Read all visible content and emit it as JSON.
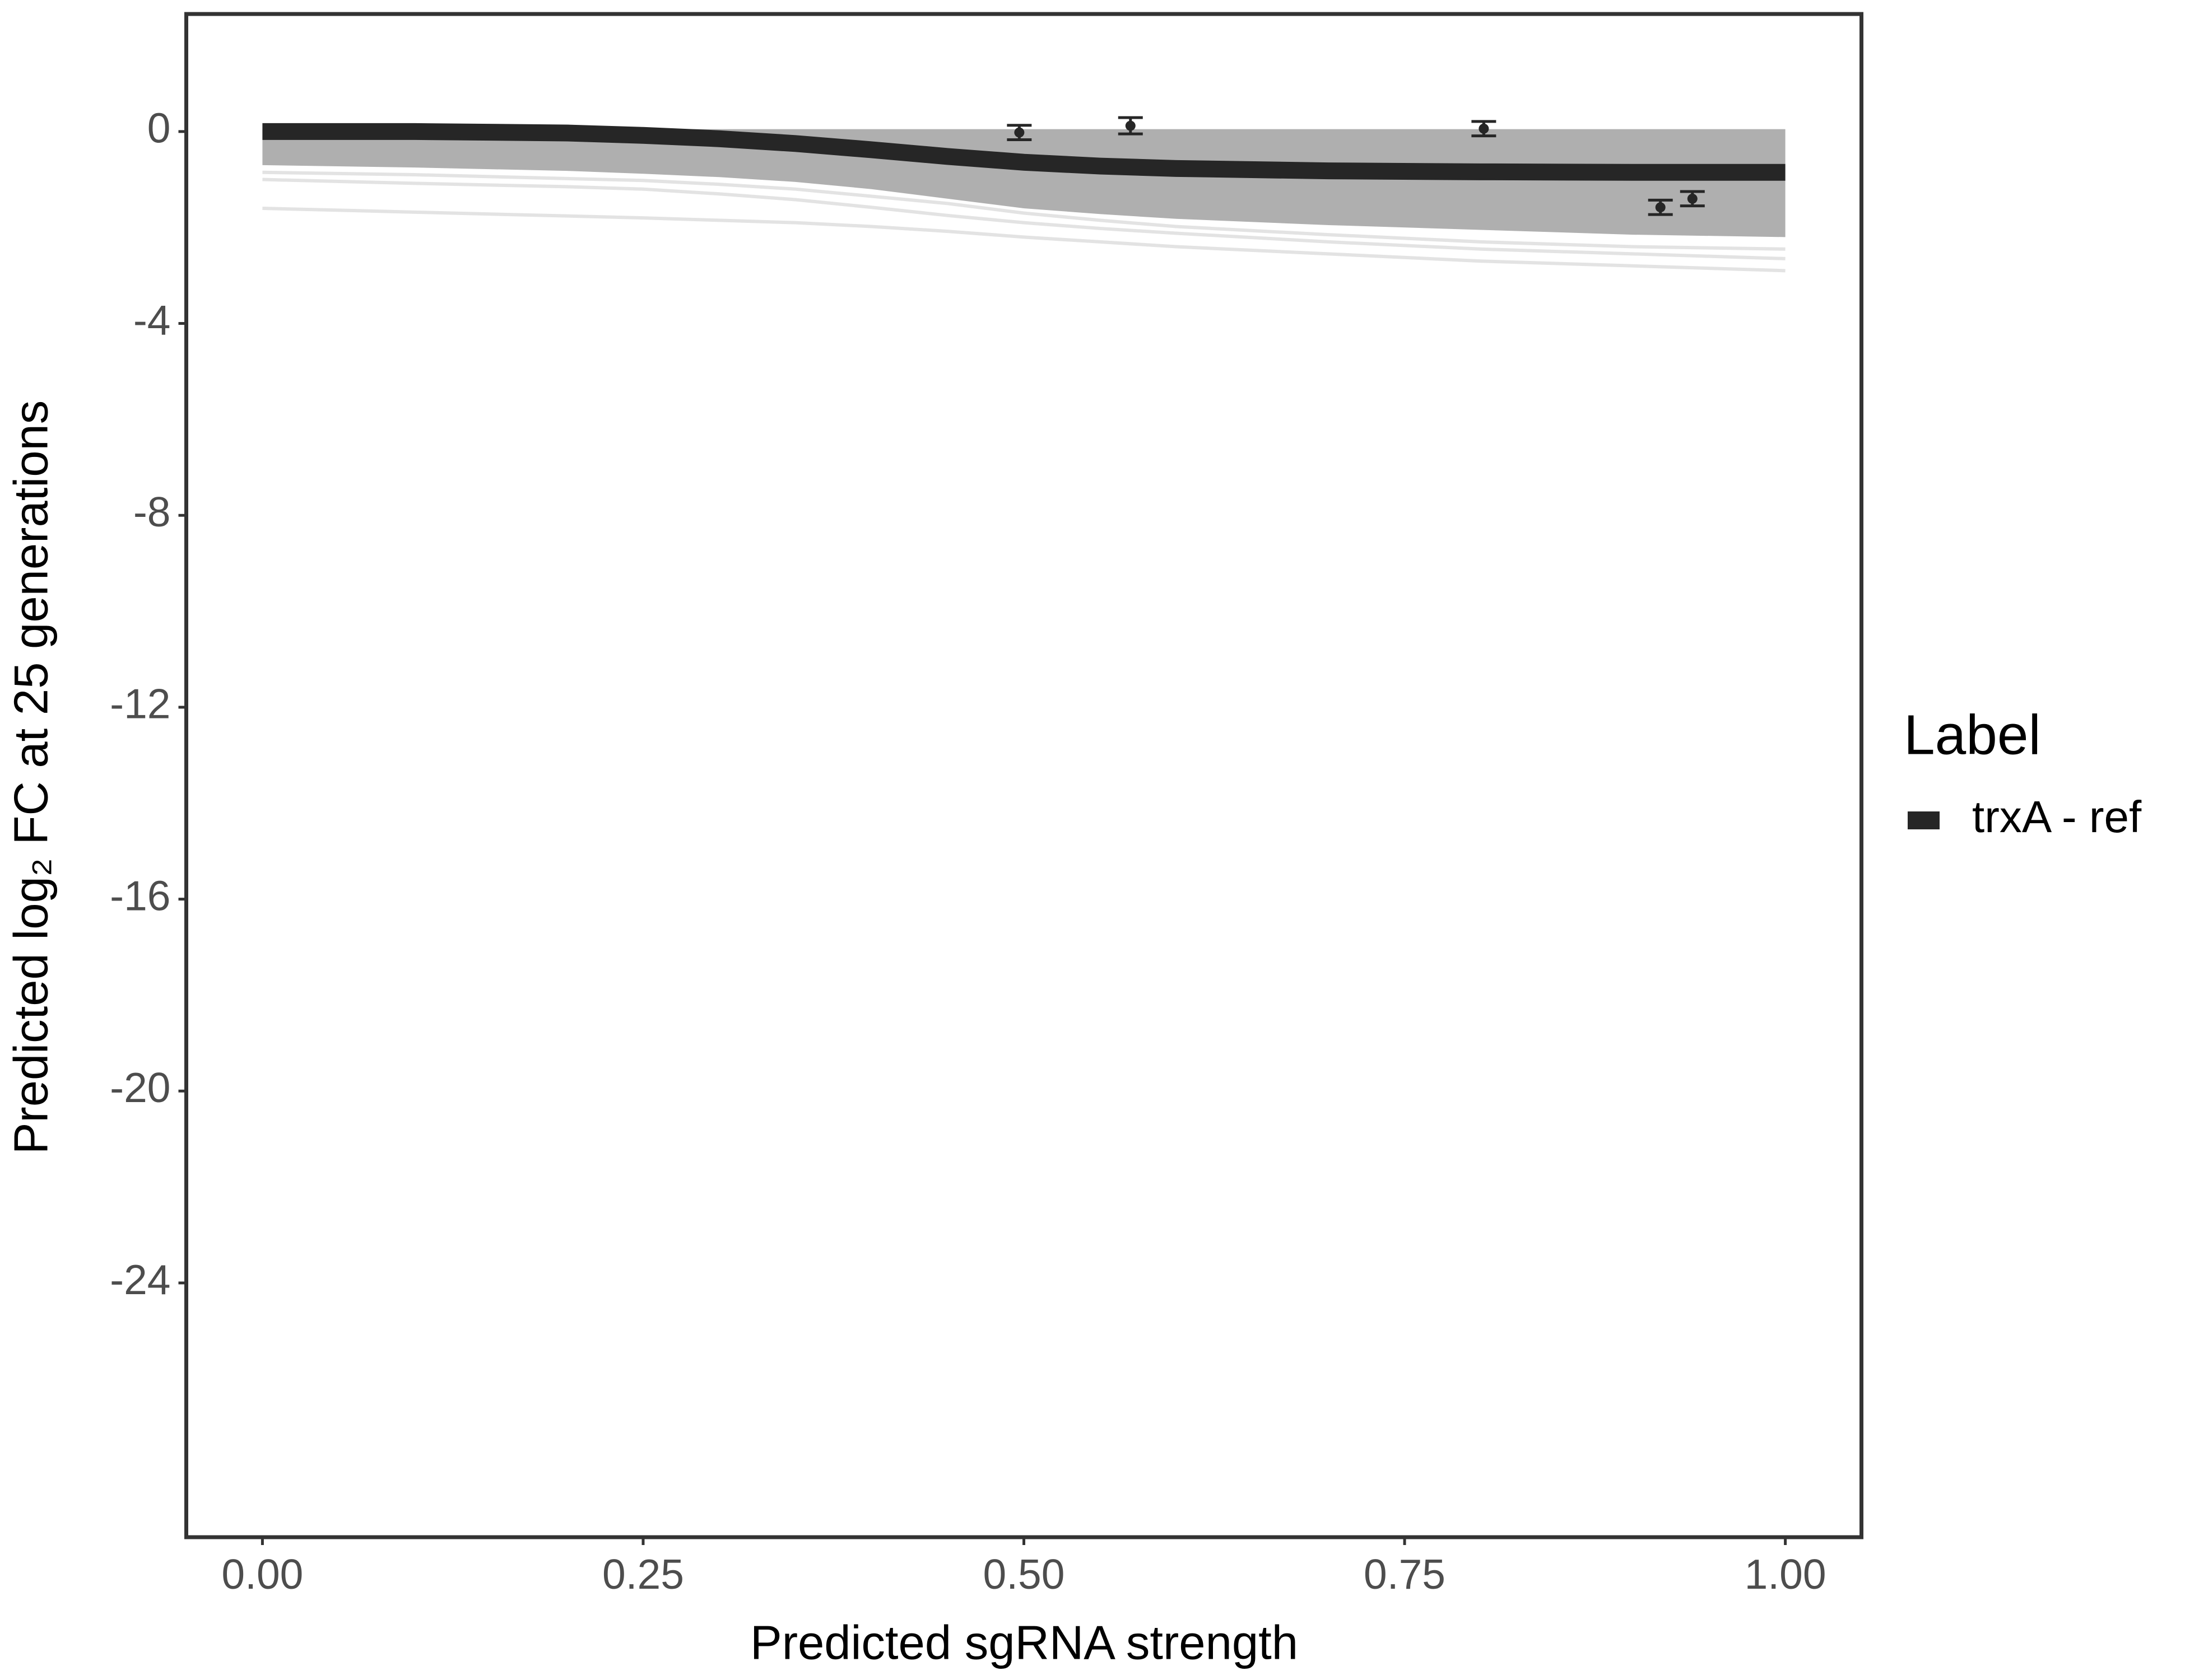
{
  "chart_data": {
    "type": "line",
    "xlabel": "Predicted sgRNA strength",
    "ylabel": "Predicted  log₂ FC at 25 generations",
    "legend_title": "Label",
    "xlim": [
      -0.05,
      1.05
    ],
    "ylim": [
      -29.3,
      2.45
    ],
    "xticks": [
      {
        "value": 0,
        "label": "0.00"
      },
      {
        "value": 0.25,
        "label": "0.25"
      },
      {
        "value": 0.5,
        "label": "0.50"
      },
      {
        "value": 0.75,
        "label": "0.75"
      },
      {
        "value": 1,
        "label": "1.00"
      }
    ],
    "yticks": [
      0,
      -4,
      -8,
      -12,
      -16,
      -20,
      -24
    ],
    "x": [
      0,
      0.1,
      0.2,
      0.25,
      0.3,
      0.35,
      0.4,
      0.45,
      0.5,
      0.55,
      0.6,
      0.7,
      0.8,
      0.9,
      1.0
    ],
    "series": [
      {
        "name": "trxA - ref",
        "color": "#262626",
        "values": [
          0,
          0,
          -0.03,
          -0.08,
          -0.15,
          -0.25,
          -0.38,
          -0.52,
          -0.64,
          -0.72,
          -0.77,
          -0.82,
          -0.84,
          -0.85,
          -0.85
        ]
      }
    ],
    "band": {
      "color": "#a6a6a6",
      "upper": [
        0.05,
        0.05,
        0.05,
        0.05,
        0.05,
        0.05,
        0.05,
        0.05,
        0.05,
        0.05,
        0.05,
        0.05,
        0.05,
        0.05,
        0.05
      ],
      "lower": [
        -0.7,
        -0.75,
        -0.82,
        -0.88,
        -0.95,
        -1.05,
        -1.2,
        -1.4,
        -1.6,
        -1.72,
        -1.82,
        -1.95,
        -2.05,
        -2.15,
        -2.2
      ]
    },
    "draws": {
      "color": "#e3e3e3",
      "lines": [
        [
          -1.6,
          -1.68,
          -1.76,
          -1.8,
          -1.85,
          -1.9,
          -1.98,
          -2.08,
          -2.2,
          -2.3,
          -2.4,
          -2.55,
          -2.7,
          -2.8,
          -2.9
        ],
        [
          -1.0,
          -1.08,
          -1.15,
          -1.2,
          -1.3,
          -1.42,
          -1.58,
          -1.75,
          -1.9,
          -2.02,
          -2.12,
          -2.3,
          -2.45,
          -2.55,
          -2.65
        ],
        [
          -0.85,
          -0.9,
          -0.98,
          -1.02,
          -1.1,
          -1.2,
          -1.35,
          -1.5,
          -1.7,
          -1.85,
          -1.98,
          -2.15,
          -2.3,
          -2.4,
          -2.45
        ]
      ]
    },
    "points": {
      "color": "#262626",
      "x": [
        0.497,
        0.57,
        0.802,
        0.918,
        0.939
      ],
      "values": [
        -0.02,
        0.12,
        0.06,
        -1.58,
        -1.4
      ],
      "errors": [
        0.15,
        0.17,
        0.15,
        0.15,
        0.15
      ]
    }
  }
}
